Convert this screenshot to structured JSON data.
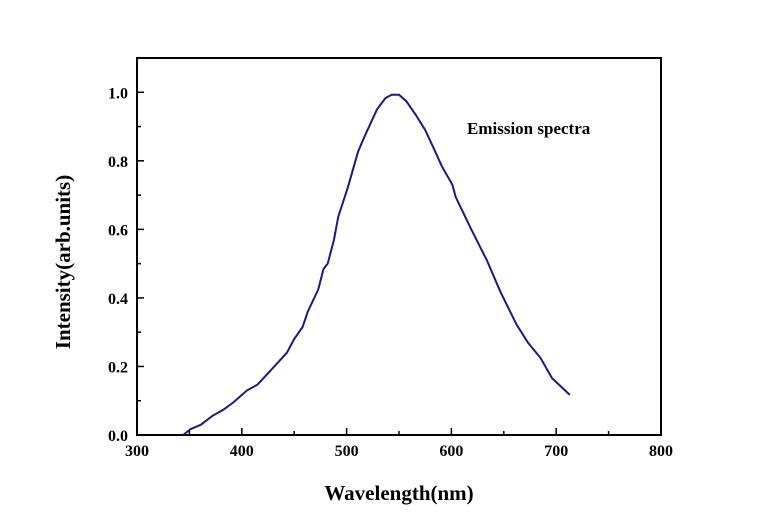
{
  "chart_data": {
    "type": "line",
    "title": "",
    "xlabel": "Wavelength(nm)",
    "ylabel": "Intensity(arb.units)",
    "xlim": [
      300,
      800
    ],
    "ylim": [
      0,
      1.1
    ],
    "xticks": [
      "300",
      "400",
      "500",
      "600",
      "700",
      "800"
    ],
    "yticks": [
      "0.0",
      "0.2",
      "0.4",
      "0.6",
      "0.8",
      "1.0"
    ],
    "grid": false,
    "annotations": [
      "Emission spectra"
    ],
    "line_color": "#1a1a80",
    "series": [
      {
        "x": [
          344,
          351,
          361,
          372,
          382,
          392,
          405,
          415,
          428,
          443,
          450,
          458,
          463,
          473,
          478,
          482,
          488,
          492,
          501,
          511,
          517,
          529,
          537,
          543,
          550,
          557,
          566,
          575,
          583,
          591,
          601,
          604,
          619,
          634,
          647,
          662,
          673,
          685,
          696,
          713
        ],
        "y": [
          0,
          0.017,
          0.03,
          0.056,
          0.073,
          0.095,
          0.13,
          0.147,
          0.19,
          0.24,
          0.28,
          0.315,
          0.36,
          0.425,
          0.484,
          0.5,
          0.57,
          0.636,
          0.72,
          0.827,
          0.87,
          0.95,
          0.983,
          0.993,
          0.993,
          0.974,
          0.934,
          0.89,
          0.837,
          0.783,
          0.73,
          0.695,
          0.6,
          0.509,
          0.416,
          0.323,
          0.27,
          0.225,
          0.166,
          0.117
        ]
      }
    ]
  }
}
